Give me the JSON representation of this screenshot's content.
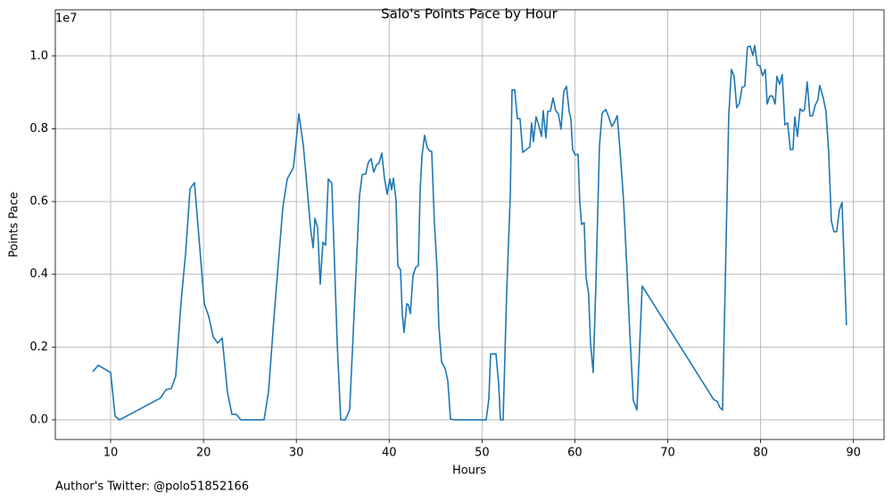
{
  "chart_data": {
    "type": "line",
    "title": "Salo's Points Pace by Hour",
    "xlabel": "Hours",
    "ylabel": "Points Pace",
    "y_offset_label": "1e7",
    "footnote": "Author's Twitter: @polo51852166",
    "x": [
      8.08,
      8.65,
      10.0,
      10.48,
      10.96,
      15.38,
      15.96,
      16.53,
      17.01,
      17.59,
      18.07,
      18.55,
      19.03,
      20.09,
      20.57,
      21.05,
      21.53,
      22.01,
      22.58,
      23.06,
      23.54,
      24.03,
      26.52,
      27.0,
      27.58,
      28.06,
      28.54,
      29.02,
      29.69,
      30.27,
      30.75,
      31.13,
      31.52,
      31.81,
      32.0,
      32.29,
      32.57,
      32.86,
      33.15,
      33.44,
      33.82,
      34.4,
      34.78,
      35.26,
      35.74,
      36.32,
      36.8,
      37.09,
      37.47,
      37.76,
      38.05,
      38.34,
      38.63,
      38.91,
      39.2,
      39.49,
      39.78,
      40.07,
      40.26,
      40.45,
      40.74,
      40.93,
      41.22,
      41.41,
      41.6,
      41.89,
      42.08,
      42.28,
      42.56,
      42.85,
      43.14,
      43.33,
      43.53,
      43.81,
      44.1,
      44.39,
      44.58,
      44.87,
      45.16,
      45.35,
      45.64,
      46.02,
      46.31,
      46.6,
      47.08,
      50.44,
      50.73,
      50.92,
      51.5,
      51.79,
      51.98,
      52.27,
      52.65,
      53.04,
      53.23,
      53.52,
      53.8,
      54.09,
      54.38,
      54.76,
      55.15,
      55.34,
      55.53,
      55.82,
      56.1,
      56.4,
      56.59,
      56.88,
      57.07,
      57.36,
      57.65,
      57.93,
      58.22,
      58.51,
      58.8,
      59.09,
      59.38,
      59.57,
      59.76,
      60.05,
      60.34,
      60.53,
      60.72,
      61.0,
      61.2,
      61.48,
      61.68,
      61.97,
      62.26,
      62.64,
      62.93,
      63.31,
      63.6,
      63.98,
      64.27,
      64.56,
      64.85,
      65.24,
      65.62,
      65.91,
      66.29,
      66.68,
      67.25,
      74.94,
      75.32,
      75.61,
      75.9,
      76.19,
      76.57,
      76.86,
      77.15,
      77.43,
      77.72,
      78.01,
      78.3,
      78.59,
      78.88,
      79.17,
      79.36,
      79.65,
      79.93,
      80.22,
      80.51,
      80.71,
      81.0,
      81.28,
      81.57,
      81.76,
      82.05,
      82.33,
      82.62,
      82.91,
      83.2,
      83.49,
      83.68,
      83.97,
      84.25,
      84.54,
      84.73,
      85.02,
      85.31,
      85.6,
      85.89,
      86.18,
      86.37,
      86.75,
      87.04,
      87.33,
      87.62,
      87.9,
      88.19,
      88.48,
      88.77,
      89.25
    ],
    "series": [
      {
        "name": "Points Pace",
        "color": "#1f77b4",
        "values": [
          0.132,
          0.15,
          0.13,
          0.01,
          0.0,
          0.06,
          0.083,
          0.086,
          0.12,
          0.326,
          0.456,
          0.635,
          0.652,
          0.319,
          0.284,
          0.228,
          0.211,
          0.225,
          0.076,
          0.015,
          0.015,
          0,
          0,
          0.076,
          0.277,
          0.431,
          0.583,
          0.662,
          0.694,
          0.841,
          0.755,
          0.647,
          0.529,
          0.473,
          0.554,
          0.529,
          0.373,
          0.488,
          0.48,
          0.662,
          0.65,
          0.211,
          0,
          0,
          0.027,
          0.346,
          0.615,
          0.674,
          0.676,
          0.708,
          0.718,
          0.681,
          0.701,
          0.706,
          0.733,
          0.664,
          0.62,
          0.662,
          0.632,
          0.664,
          0.603,
          0.424,
          0.412,
          0.292,
          0.24,
          0.319,
          0.316,
          0.292,
          0.395,
          0.419,
          0.424,
          0.627,
          0.725,
          0.782,
          0.748,
          0.738,
          0.738,
          0.542,
          0.412,
          0.257,
          0.159,
          0.142,
          0.108,
          0.002,
          0,
          0,
          0.056,
          0.181,
          0.181,
          0.1,
          0,
          0,
          0.346,
          0.615,
          0.907,
          0.907,
          0.828,
          0.828,
          0.735,
          0.743,
          0.75,
          0.816,
          0.765,
          0.833,
          0.811,
          0.779,
          0.85,
          0.775,
          0.848,
          0.848,
          0.885,
          0.85,
          0.841,
          0.799,
          0.902,
          0.917,
          0.848,
          0.826,
          0.743,
          0.728,
          0.73,
          0.598,
          0.537,
          0.542,
          0.392,
          0.346,
          0.211,
          0.13,
          0.37,
          0.75,
          0.843,
          0.853,
          0.836,
          0.806,
          0.819,
          0.836,
          0.745,
          0.603,
          0.407,
          0.24,
          0.054,
          0.027,
          0.368,
          0.056,
          0.051,
          0.034,
          0.027,
          0.37,
          0.836,
          0.963,
          0.944,
          0.858,
          0.87,
          0.914,
          0.917,
          1.025,
          1.027,
          1.002,
          1.029,
          0.975,
          0.973,
          0.946,
          0.963,
          0.868,
          0.89,
          0.89,
          0.868,
          0.944,
          0.922,
          0.949,
          0.811,
          0.816,
          0.743,
          0.743,
          0.833,
          0.779,
          0.855,
          0.848,
          0.853,
          0.929,
          0.836,
          0.836,
          0.865,
          0.88,
          0.919,
          0.885,
          0.848,
          0.738,
          0.547,
          0.517,
          0.517,
          0.576,
          0.598,
          0.26
        ]
      }
    ],
    "xlim": [
      4.04,
      93.3
    ],
    "xticks": [
      10,
      20,
      30,
      40,
      50,
      60,
      70,
      80,
      90
    ],
    "ylim": [
      -0.054,
      1.127
    ],
    "yticks": [
      {
        "value": 0,
        "label": "0.0"
      },
      0.2,
      0.4,
      0.6,
      0.8,
      {
        "value": 1,
        "label": "1.0"
      }
    ],
    "grid": true
  }
}
